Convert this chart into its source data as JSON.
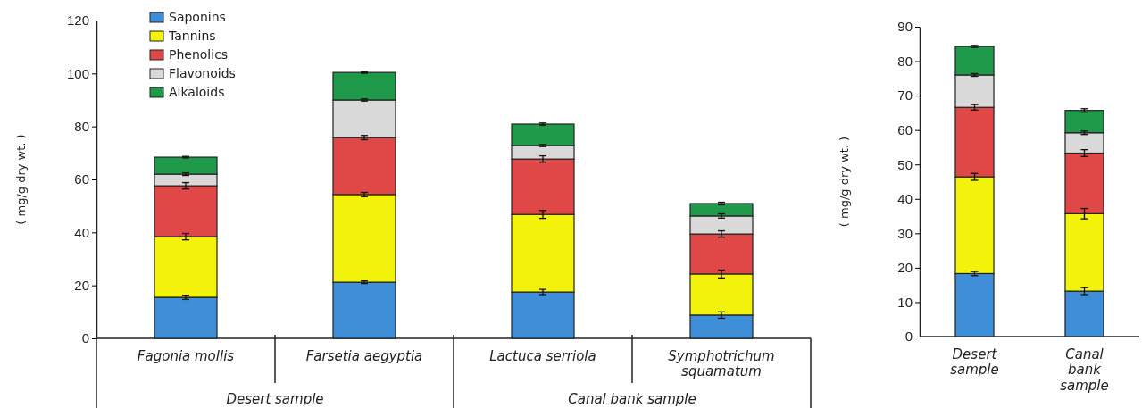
{
  "chart_data": [
    {
      "type": "bar",
      "stacked": true,
      "ylabel": "( mg/g dry wt. )",
      "categories": [
        "Fagonia mollis",
        "Farsetia aegyptia",
        "Lactuca serriola",
        "Symphotrichum squamatum"
      ],
      "ylim": [
        0,
        120
      ],
      "yticks": [
        0,
        20,
        40,
        60,
        80,
        100,
        120
      ],
      "legend": "top left",
      "annotations": [
        "Desert sample",
        "Canal bank sample"
      ],
      "series": [
        {
          "name": "Saponins",
          "color": "#3f8fd8",
          "values": [
            15.5,
            21.2,
            17.5,
            8.8
          ],
          "errors": [
            0.8,
            0.5,
            1.0,
            1.2
          ]
        },
        {
          "name": "Tannins",
          "color": "#f2f20a",
          "values": [
            22.9,
            33.1,
            29.3,
            15.5
          ],
          "errors": [
            1.2,
            0.8,
            1.5,
            1.5
          ]
        },
        {
          "name": "Phenolics",
          "color": "#e04848",
          "values": [
            19.2,
            21.5,
            20.9,
            15.1
          ],
          "errors": [
            1.2,
            0.8,
            1.2,
            1.2
          ]
        },
        {
          "name": "Flavonoids",
          "color": "#d9d9d9",
          "values": [
            4.4,
            14.2,
            5.1,
            6.8
          ],
          "errors": [
            0.5,
            0.4,
            0.4,
            0.8
          ]
        },
        {
          "name": "Alkaloids",
          "color": "#1f9a4a",
          "values": [
            6.4,
            10.4,
            8.1,
            4.7
          ],
          "errors": [
            0.3,
            0.3,
            0.4,
            0.5
          ]
        }
      ]
    },
    {
      "type": "bar",
      "stacked": true,
      "ylabel": "( mg/g dry wt. )",
      "categories": [
        "Desert sample",
        "Canal bank sample"
      ],
      "ylim": [
        0,
        90
      ],
      "yticks": [
        0,
        10,
        20,
        30,
        40,
        50,
        60,
        70,
        80,
        90
      ],
      "series": [
        {
          "color": "#3f8fd8",
          "values": [
            18.3,
            13.2
          ],
          "errors": [
            0.6,
            1.0
          ]
        },
        {
          "color": "#f2f20a",
          "values": [
            28.1,
            22.5
          ],
          "errors": [
            1.0,
            1.5
          ]
        },
        {
          "color": "#e04848",
          "values": [
            20.2,
            17.6
          ],
          "errors": [
            0.8,
            1.0
          ]
        },
        {
          "color": "#d9d9d9",
          "values": [
            9.4,
            5.9
          ],
          "errors": [
            0.4,
            0.5
          ]
        },
        {
          "color": "#1f9a4a",
          "values": [
            8.3,
            6.5
          ],
          "errors": [
            0.3,
            0.5
          ]
        }
      ]
    }
  ]
}
